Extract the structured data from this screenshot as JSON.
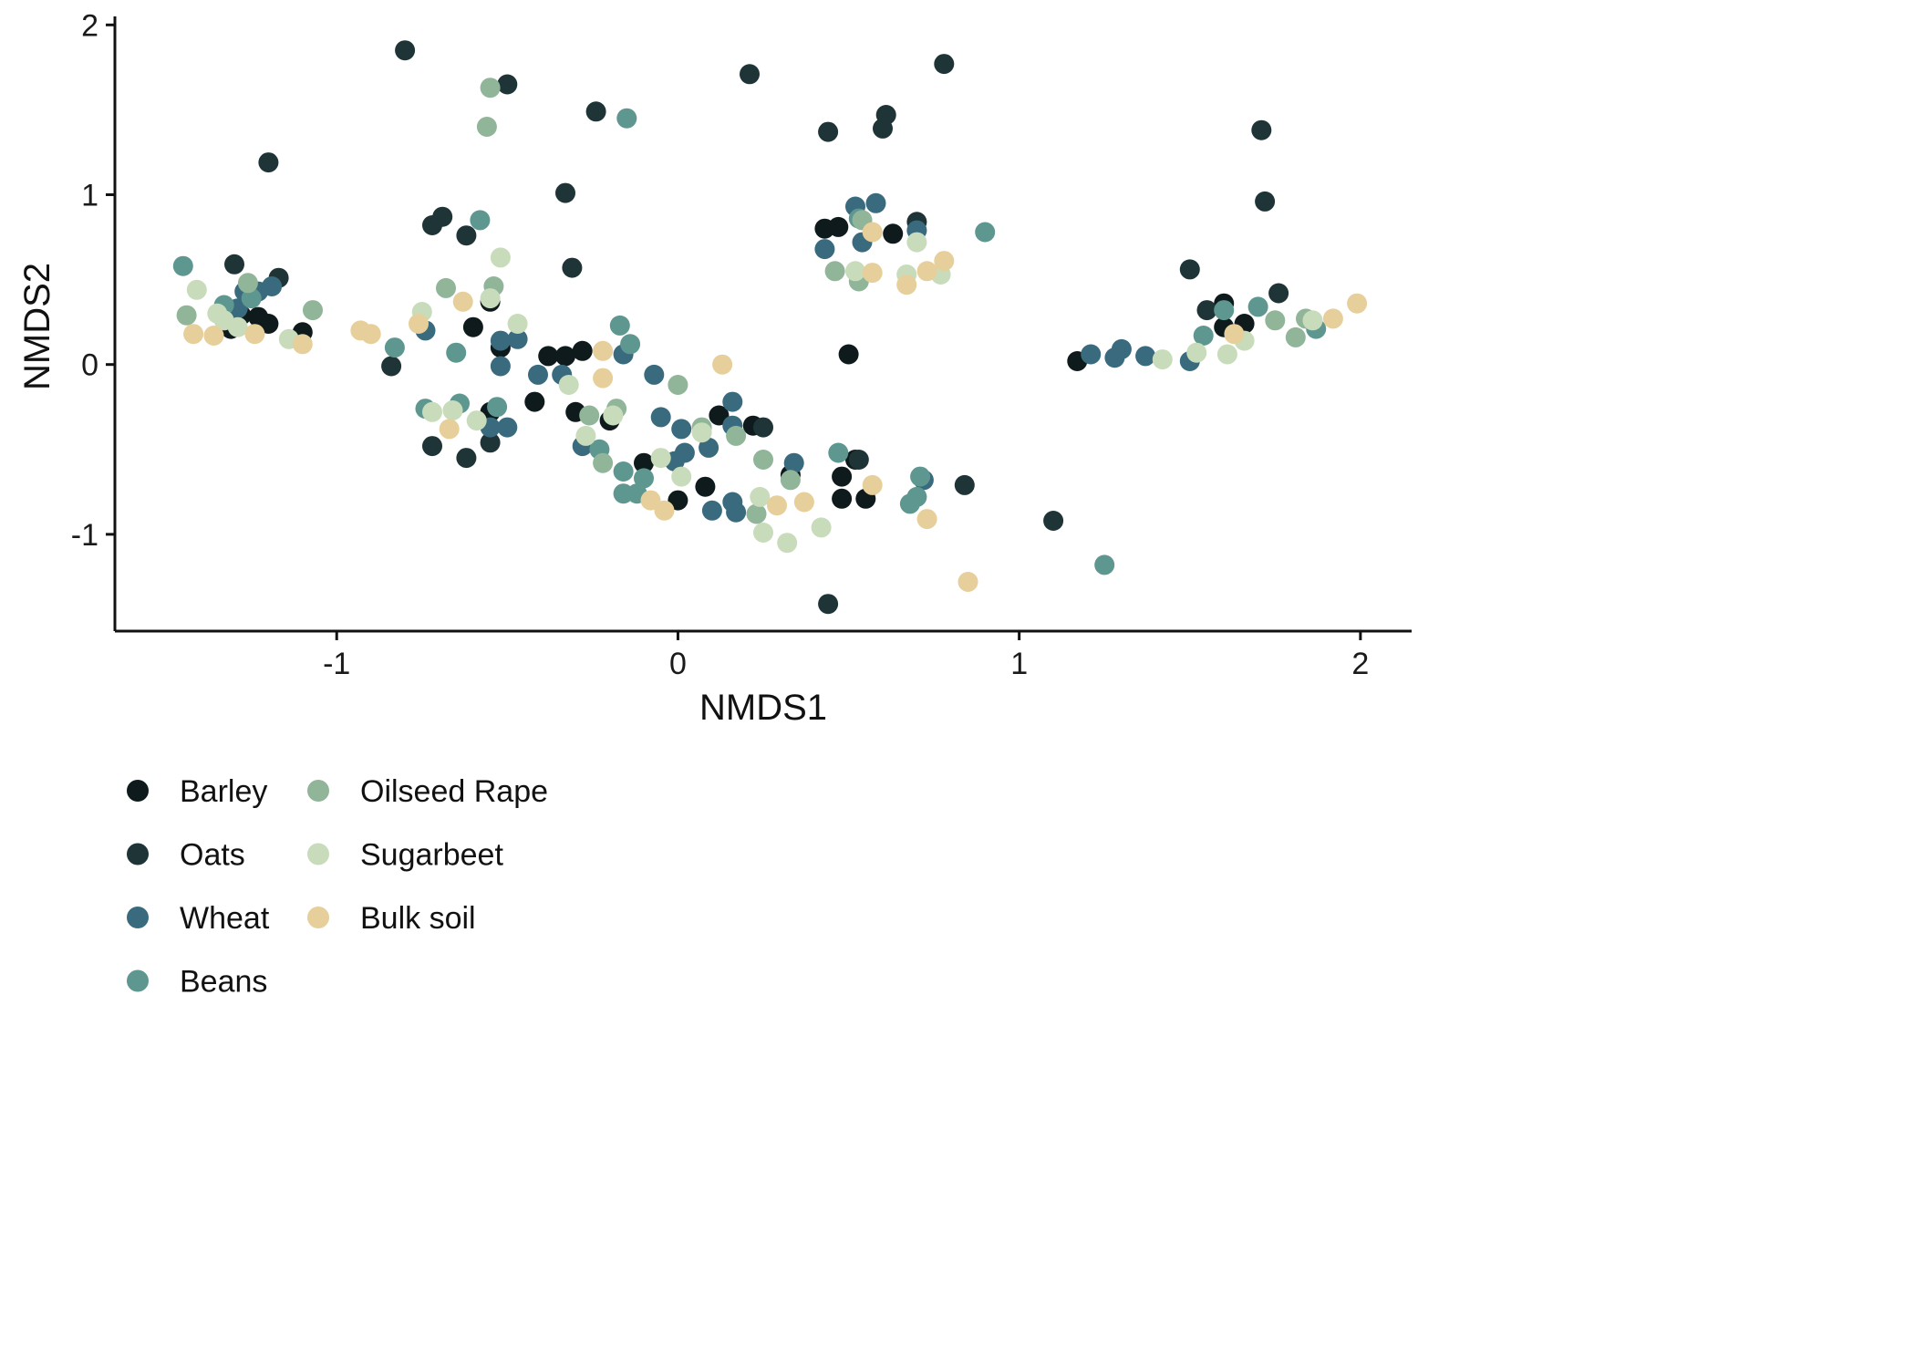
{
  "chart_data": {
    "type": "scatter",
    "title": "",
    "xlabel": "NMDS1",
    "ylabel": "NMDS2",
    "xlim": [
      -1.65,
      2.15
    ],
    "ylim": [
      -1.57,
      2.05
    ],
    "xticks": [
      -1,
      0,
      1,
      2
    ],
    "yticks": [
      -1,
      0,
      1,
      2
    ],
    "grid": false,
    "legend_position": "bottom",
    "series": [
      {
        "name": "Barley",
        "color": "#0f1a1c",
        "points": [
          [
            -1.31,
            0.21
          ],
          [
            -1.28,
            0.29
          ],
          [
            -1.23,
            0.28
          ],
          [
            -1.2,
            0.24
          ],
          [
            -1.1,
            0.19
          ],
          [
            -0.6,
            0.22
          ],
          [
            -0.55,
            0.37
          ],
          [
            -0.52,
            0.1
          ],
          [
            -0.55,
            -0.28
          ],
          [
            -0.42,
            -0.22
          ],
          [
            -0.38,
            0.05
          ],
          [
            -0.33,
            0.05
          ],
          [
            -0.3,
            -0.28
          ],
          [
            -0.28,
            0.08
          ],
          [
            -0.2,
            -0.33
          ],
          [
            -0.1,
            -0.58
          ],
          [
            0.0,
            -0.8
          ],
          [
            0.08,
            -0.72
          ],
          [
            0.12,
            -0.3
          ],
          [
            0.22,
            -0.36
          ],
          [
            0.33,
            -0.65
          ],
          [
            0.43,
            0.8
          ],
          [
            0.47,
            0.81
          ],
          [
            0.5,
            0.06
          ],
          [
            0.48,
            -0.66
          ],
          [
            0.52,
            -0.56
          ],
          [
            0.48,
            -0.79
          ],
          [
            0.55,
            -0.79
          ],
          [
            0.63,
            0.77
          ],
          [
            1.17,
            0.02
          ],
          [
            1.6,
            0.36
          ],
          [
            1.66,
            0.24
          ],
          [
            1.6,
            0.22
          ]
        ]
      },
      {
        "name": "Oats",
        "color": "#1f3437",
        "points": [
          [
            -0.8,
            1.85
          ],
          [
            -0.5,
            1.65
          ],
          [
            -0.24,
            1.49
          ],
          [
            0.21,
            1.71
          ],
          [
            0.78,
            1.77
          ],
          [
            -1.2,
            1.19
          ],
          [
            -0.33,
            1.01
          ],
          [
            0.44,
            1.37
          ],
          [
            0.61,
            1.47
          ],
          [
            0.6,
            1.39
          ],
          [
            1.71,
            1.38
          ],
          [
            1.72,
            0.96
          ],
          [
            -0.72,
            0.82
          ],
          [
            -0.69,
            0.87
          ],
          [
            -0.62,
            0.76
          ],
          [
            -0.31,
            0.57
          ],
          [
            -1.3,
            0.59
          ],
          [
            -1.17,
            0.51
          ],
          [
            -0.84,
            -0.01
          ],
          [
            -0.62,
            -0.55
          ],
          [
            -0.55,
            -0.46
          ],
          [
            -0.72,
            -0.48
          ],
          [
            0.25,
            -0.37
          ],
          [
            0.53,
            -0.56
          ],
          [
            0.7,
            0.84
          ],
          [
            0.84,
            -0.71
          ],
          [
            1.1,
            -0.92
          ],
          [
            0.44,
            -1.41
          ],
          [
            1.5,
            0.56
          ],
          [
            1.76,
            0.42
          ],
          [
            1.55,
            0.32
          ]
        ]
      },
      {
        "name": "Wheat",
        "color": "#396a7d",
        "points": [
          [
            -1.27,
            0.43
          ],
          [
            -1.23,
            0.43
          ],
          [
            -1.19,
            0.46
          ],
          [
            -1.29,
            0.33
          ],
          [
            -0.74,
            0.2
          ],
          [
            -0.52,
            0.14
          ],
          [
            -0.47,
            0.15
          ],
          [
            -0.52,
            -0.01
          ],
          [
            -0.41,
            -0.06
          ],
          [
            -0.34,
            -0.06
          ],
          [
            -0.55,
            -0.37
          ],
          [
            -0.5,
            -0.37
          ],
          [
            -0.28,
            -0.48
          ],
          [
            -0.16,
            0.06
          ],
          [
            -0.07,
            -0.06
          ],
          [
            -0.05,
            -0.31
          ],
          [
            0.01,
            -0.38
          ],
          [
            0.02,
            -0.52
          ],
          [
            -0.01,
            -0.57
          ],
          [
            0.09,
            -0.49
          ],
          [
            0.16,
            -0.36
          ],
          [
            0.16,
            -0.22
          ],
          [
            0.1,
            -0.86
          ],
          [
            0.16,
            -0.81
          ],
          [
            0.17,
            -0.87
          ],
          [
            0.34,
            -0.58
          ],
          [
            0.43,
            0.68
          ],
          [
            0.52,
            0.93
          ],
          [
            0.58,
            0.95
          ],
          [
            0.54,
            0.72
          ],
          [
            0.7,
            0.79
          ],
          [
            0.72,
            -0.68
          ],
          [
            1.21,
            0.06
          ],
          [
            1.28,
            0.04
          ],
          [
            1.3,
            0.09
          ],
          [
            1.37,
            0.05
          ],
          [
            1.5,
            0.02
          ]
        ]
      },
      {
        "name": "Beans",
        "color": "#5e9790",
        "points": [
          [
            -1.45,
            0.58
          ],
          [
            -1.33,
            0.35
          ],
          [
            -1.25,
            0.39
          ],
          [
            -0.83,
            0.1
          ],
          [
            -0.65,
            0.07
          ],
          [
            -0.58,
            0.85
          ],
          [
            -0.74,
            -0.26
          ],
          [
            -0.64,
            -0.23
          ],
          [
            -0.53,
            -0.25
          ],
          [
            -0.15,
            1.45
          ],
          [
            -0.17,
            0.23
          ],
          [
            -0.14,
            0.12
          ],
          [
            -0.23,
            -0.5
          ],
          [
            -0.16,
            -0.63
          ],
          [
            -0.16,
            -0.76
          ],
          [
            -0.12,
            -0.76
          ],
          [
            -0.1,
            -0.67
          ],
          [
            0.47,
            -0.52
          ],
          [
            0.53,
            0.86
          ],
          [
            0.71,
            -0.66
          ],
          [
            0.7,
            -0.78
          ],
          [
            0.68,
            -0.82
          ],
          [
            0.9,
            0.78
          ],
          [
            1.25,
            -1.18
          ],
          [
            1.54,
            0.17
          ],
          [
            1.6,
            0.32
          ],
          [
            1.7,
            0.34
          ],
          [
            1.87,
            0.21
          ]
        ]
      },
      {
        "name": "Oilseed Rape",
        "color": "#90b598",
        "points": [
          [
            -1.44,
            0.29
          ],
          [
            -1.26,
            0.48
          ],
          [
            -1.07,
            0.32
          ],
          [
            -0.55,
            1.63
          ],
          [
            -0.56,
            1.4
          ],
          [
            -0.68,
            0.45
          ],
          [
            -0.54,
            0.46
          ],
          [
            -0.26,
            -0.3
          ],
          [
            -0.22,
            -0.58
          ],
          [
            -0.18,
            -0.26
          ],
          [
            0.0,
            -0.12
          ],
          [
            0.07,
            -0.37
          ],
          [
            0.17,
            -0.42
          ],
          [
            0.25,
            -0.56
          ],
          [
            0.23,
            -0.88
          ],
          [
            0.33,
            -0.68
          ],
          [
            0.54,
            0.85
          ],
          [
            0.53,
            0.49
          ],
          [
            0.46,
            0.55
          ],
          [
            1.84,
            0.27
          ],
          [
            1.81,
            0.16
          ],
          [
            1.75,
            0.26
          ]
        ]
      },
      {
        "name": "Sugarbeet",
        "color": "#c8dcbb",
        "points": [
          [
            -1.41,
            0.44
          ],
          [
            -1.35,
            0.3
          ],
          [
            -1.33,
            0.26
          ],
          [
            -1.29,
            0.22
          ],
          [
            -1.14,
            0.15
          ],
          [
            -0.72,
            -0.28
          ],
          [
            -0.75,
            0.31
          ],
          [
            -0.66,
            -0.27
          ],
          [
            -0.59,
            -0.33
          ],
          [
            -0.52,
            0.63
          ],
          [
            -0.55,
            0.39
          ],
          [
            -0.47,
            0.24
          ],
          [
            -0.32,
            -0.12
          ],
          [
            -0.27,
            -0.42
          ],
          [
            -0.19,
            -0.3
          ],
          [
            -0.05,
            -0.55
          ],
          [
            0.01,
            -0.66
          ],
          [
            0.07,
            -0.4
          ],
          [
            0.24,
            -0.78
          ],
          [
            0.25,
            -0.99
          ],
          [
            0.32,
            -1.05
          ],
          [
            0.42,
            -0.96
          ],
          [
            0.52,
            0.55
          ],
          [
            0.67,
            0.53
          ],
          [
            0.7,
            0.72
          ],
          [
            0.77,
            0.53
          ],
          [
            1.52,
            0.07
          ],
          [
            1.61,
            0.06
          ],
          [
            1.66,
            0.14
          ],
          [
            1.86,
            0.26
          ],
          [
            1.42,
            0.03
          ]
        ]
      },
      {
        "name": "Bulk soil",
        "color": "#e6cf9a",
        "points": [
          [
            -1.42,
            0.18
          ],
          [
            -1.36,
            0.17
          ],
          [
            -1.24,
            0.18
          ],
          [
            -1.1,
            0.12
          ],
          [
            -0.93,
            0.2
          ],
          [
            -0.9,
            0.18
          ],
          [
            -0.76,
            0.24
          ],
          [
            -0.63,
            0.37
          ],
          [
            -0.22,
            0.08
          ],
          [
            -0.22,
            -0.08
          ],
          [
            0.13,
            0.0
          ],
          [
            -0.08,
            -0.8
          ],
          [
            -0.04,
            -0.86
          ],
          [
            0.29,
            -0.83
          ],
          [
            0.37,
            -0.81
          ],
          [
            0.57,
            0.54
          ],
          [
            0.57,
            0.78
          ],
          [
            0.67,
            0.47
          ],
          [
            0.73,
            0.55
          ],
          [
            0.78,
            0.61
          ],
          [
            0.73,
            -0.91
          ],
          [
            0.85,
            -1.28
          ],
          [
            1.63,
            0.18
          ],
          [
            1.92,
            0.27
          ],
          [
            1.99,
            0.36
          ],
          [
            0.57,
            -0.71
          ],
          [
            -0.67,
            -0.38
          ]
        ]
      }
    ]
  }
}
